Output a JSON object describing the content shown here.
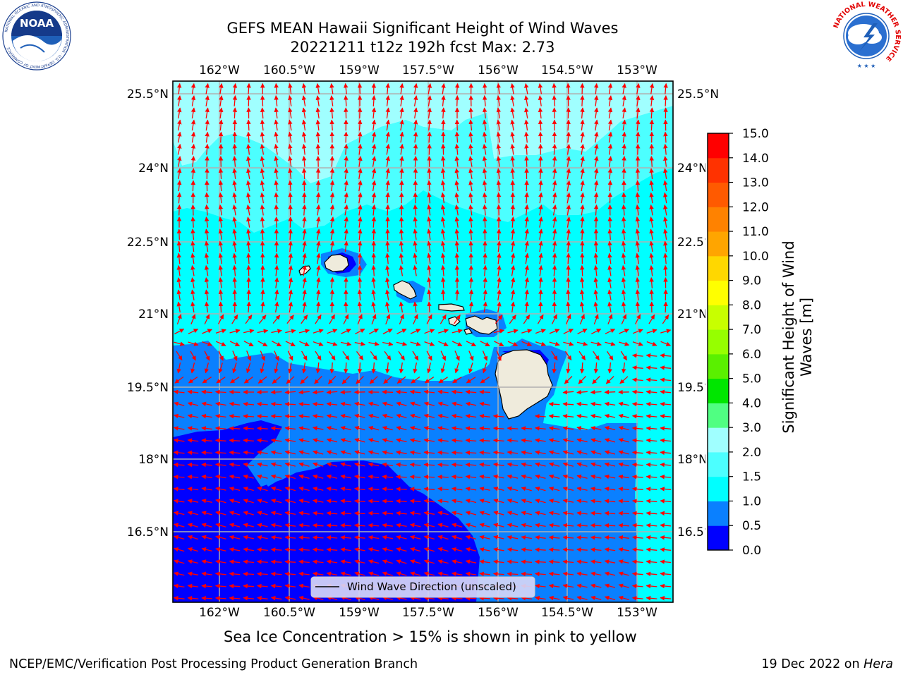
{
  "title": {
    "line1": "GEFS MEAN Hawaii Significant Height of Wind Waves",
    "line2": "20221211 t12z 192h fcst   Max: 2.73"
  },
  "logos": {
    "left": "NOAA",
    "left_ring": "NATIONAL OCEANIC AND ATMOSPHERIC ADMINISTRATION · U.S. DEPARTMENT OF COMMERCE",
    "right_ring": "NATIONAL WEATHER SERVICE"
  },
  "map": {
    "lon_labels": [
      "162°W",
      "160.5°W",
      "159°W",
      "157.5°W",
      "156°W",
      "154.5°W",
      "153°W"
    ],
    "lat_labels": [
      "25.5°N",
      "24°N",
      "22.5°N",
      "21°N",
      "19.5°N",
      "18°N",
      "16.5°N"
    ],
    "legend_label": "Wind Wave Direction (unscaled)",
    "arrow_color": "#ff0000",
    "land_color": "#efebdc",
    "grid_color": "#b0b0b0"
  },
  "colorbar": {
    "label": "Significant Height of Wind Waves [m]",
    "label_lines": [
      "Significant Height of Wind",
      "Waves [m]"
    ],
    "ticks": [
      "0.0",
      "0.5",
      "1.0",
      "1.5",
      "2.0",
      "3.0",
      "4.0",
      "5.0",
      "6.0",
      "7.0",
      "8.0",
      "9.0",
      "10.0",
      "11.0",
      "12.0",
      "13.0",
      "14.0",
      "15.0"
    ],
    "colors": [
      "#0000ff",
      "#0a80ff",
      "#00ffff",
      "#4cffff",
      "#a0ffff",
      "#50ff82",
      "#00e600",
      "#5af000",
      "#96ff00",
      "#c8ff00",
      "#ffff00",
      "#ffd700",
      "#ffa500",
      "#ff8200",
      "#ff5a00",
      "#ff3200",
      "#ff0000"
    ]
  },
  "ice_note": "Sea Ice Concentration > 15% is shown in pink to yellow",
  "footer": {
    "left": "NCEP/EMC/Verification Post Processing Product Generation Branch",
    "date": "19 Dec 2022 on ",
    "machine": "Hera"
  }
}
